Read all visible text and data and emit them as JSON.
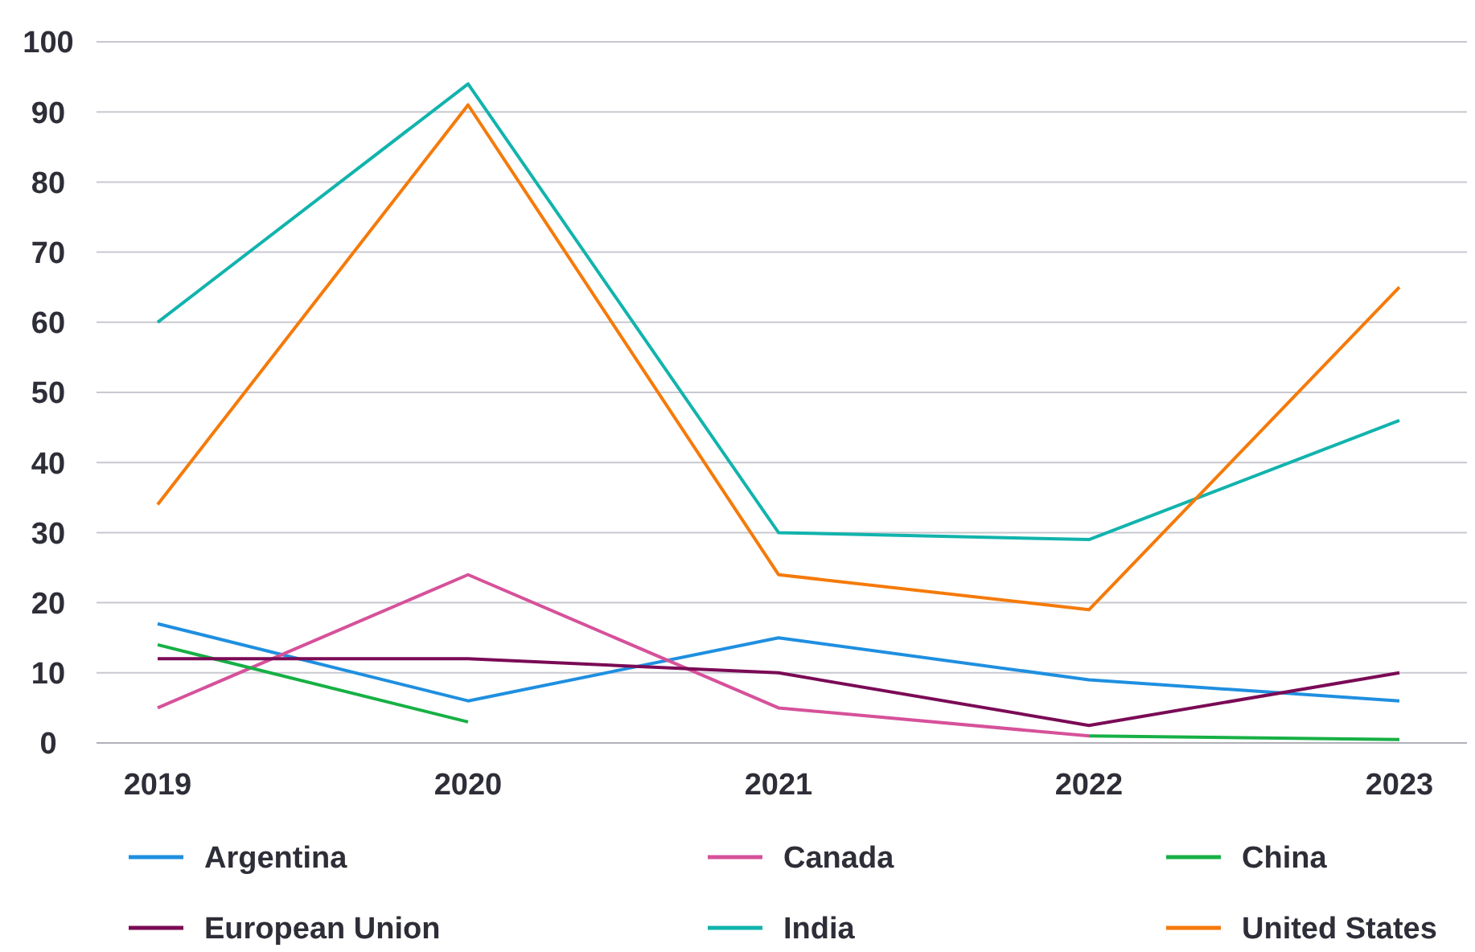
{
  "chart_data": {
    "type": "line",
    "categories": [
      "2019",
      "2020",
      "2021",
      "2022",
      "2023"
    ],
    "series": [
      {
        "name": "Argentina",
        "color": "#1f8fe0",
        "values": [
          17,
          6,
          15,
          9,
          6
        ]
      },
      {
        "name": "Canada",
        "color": "#d6519a",
        "values": [
          5,
          24,
          5,
          1,
          null
        ]
      },
      {
        "name": "China",
        "color": "#17b045",
        "values": [
          14,
          3,
          null,
          1,
          0.5
        ]
      },
      {
        "name": "European Union",
        "color": "#7a0a55",
        "values": [
          12,
          12,
          10,
          2.5,
          10
        ]
      },
      {
        "name": "India",
        "color": "#12b3ad",
        "values": [
          60,
          94,
          30,
          29,
          46
        ]
      },
      {
        "name": "United States",
        "color": "#f57a0a",
        "values": [
          34,
          91,
          24,
          19,
          65
        ]
      }
    ],
    "ylim": [
      0,
      100
    ],
    "yticks": [
      0,
      10,
      20,
      30,
      40,
      50,
      60,
      70,
      80,
      90,
      100
    ],
    "grid": "y",
    "legend": "bottom",
    "marker": "none",
    "line_style": "solid"
  }
}
